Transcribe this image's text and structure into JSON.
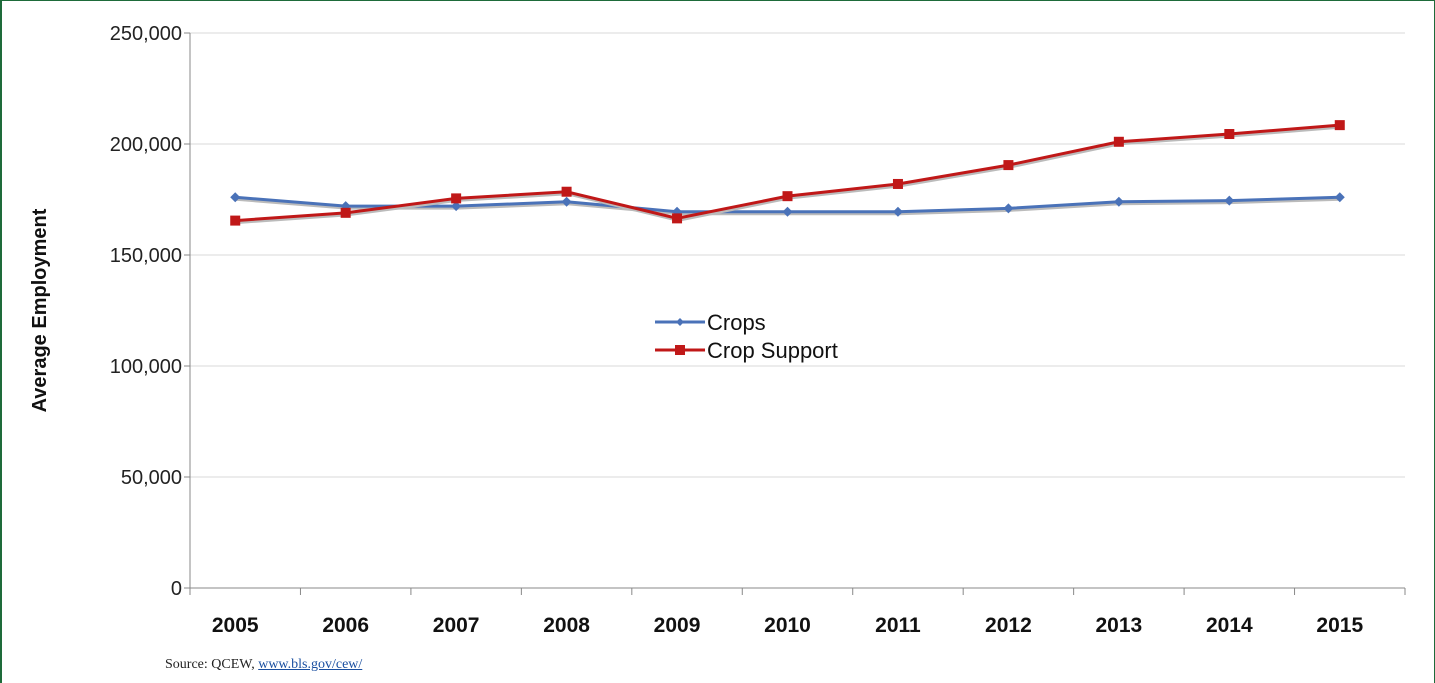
{
  "chart_data": {
    "type": "line",
    "title": "",
    "xlabel": "",
    "ylabel": "Average Employment",
    "categories": [
      "2005",
      "2006",
      "2007",
      "2008",
      "2009",
      "2010",
      "2011",
      "2012",
      "2013",
      "2014",
      "2015"
    ],
    "y_ticks": [
      "0",
      "50,000",
      "100,000",
      "150,000",
      "200,000",
      "250,000"
    ],
    "ylim": [
      0,
      250000
    ],
    "grid": "horizontal",
    "legend_position": "center",
    "series": [
      {
        "name": "Crops",
        "color": "#4a72b8",
        "marker": "diamond",
        "values": [
          176000,
          172000,
          172000,
          174000,
          169500,
          169500,
          169500,
          171000,
          174000,
          174500,
          176000
        ]
      },
      {
        "name": "Crop Support",
        "color": "#c01818",
        "marker": "square",
        "values": [
          165500,
          169000,
          175500,
          178500,
          166500,
          176500,
          182000,
          190500,
          201000,
          204500,
          208500
        ]
      }
    ]
  },
  "source": {
    "prefix": "Source: QCEW, ",
    "link_text": "www.bls.gov/cew/"
  }
}
